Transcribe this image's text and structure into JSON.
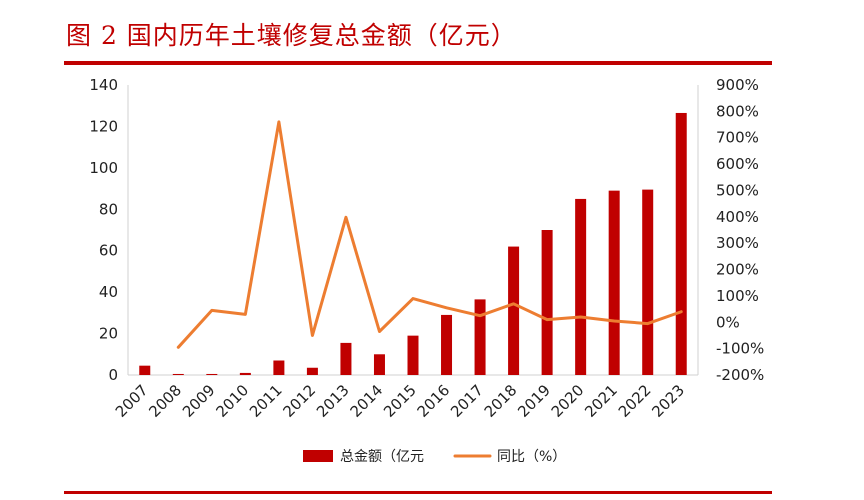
{
  "figure": {
    "title": "图 2 国内历年土壤修复总金额（亿元）"
  },
  "chart_data": {
    "type": "bar",
    "categories": [
      "2007",
      "2008",
      "2009",
      "2010",
      "2011",
      "2012",
      "2013",
      "2014",
      "2015",
      "2016",
      "2017",
      "2018",
      "2019",
      "2020",
      "2021",
      "2022",
      "2023"
    ],
    "series": [
      {
        "name": "总金额（亿元",
        "type": "bar",
        "axis": "left",
        "color": "#c00000",
        "values": [
          4.5,
          0.5,
          0.5,
          1,
          7,
          3.5,
          15.5,
          10,
          19,
          29,
          36.5,
          62,
          70,
          85,
          89,
          89.5,
          126.5
        ]
      },
      {
        "name": "同比（%）",
        "type": "line",
        "axis": "right",
        "color": "#ed7d31",
        "values": [
          null,
          -95,
          45,
          30,
          760,
          -50,
          398,
          -35,
          90,
          55,
          25,
          70,
          10,
          20,
          5,
          -5,
          40
        ]
      }
    ],
    "y_left": {
      "min": 0,
      "max": 140,
      "step": 20,
      "tick_labels": [
        "0",
        "20",
        "40",
        "60",
        "80",
        "100",
        "120",
        "140"
      ]
    },
    "y_right": {
      "min": -200,
      "max": 900,
      "step": 100,
      "tick_labels": [
        "-200%",
        "-100%",
        "0%",
        "100%",
        "200%",
        "300%",
        "400%",
        "500%",
        "600%",
        "700%",
        "800%",
        "900%"
      ]
    },
    "legend_position": "bottom",
    "grid": false
  }
}
